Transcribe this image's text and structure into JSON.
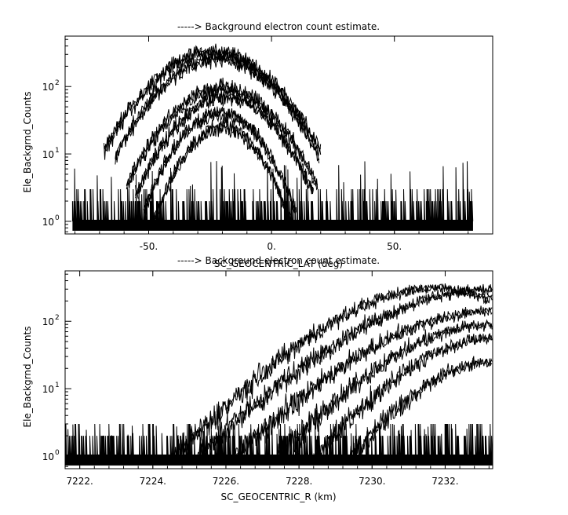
{
  "chart_data": [
    {
      "type": "line",
      "title": "-----> Background electron count estimate.",
      "xlabel": "SC_GEOCENTRIC_LAT (deg)",
      "ylabel": "Ele_Backgrnd_Counts",
      "y_scale": "log",
      "xlim": [
        -84,
        90
      ],
      "ylim": [
        0.65,
        560
      ],
      "x_ticks": [
        -50,
        0,
        50
      ],
      "x_tick_labels": [
        "-50.",
        "0.",
        "50."
      ],
      "y_ticks": [
        1,
        10,
        100
      ],
      "y_tick_labels": [
        {
          "base": "10",
          "exp": "0"
        },
        {
          "base": "10",
          "exp": "1"
        },
        {
          "base": "10",
          "exp": "2"
        }
      ],
      "grid": false,
      "series_envelopes": [
        {
          "center_x": -24,
          "width": 17,
          "peak": 320
        },
        {
          "center_x": -22,
          "width": 16,
          "peak": 260
        },
        {
          "center_x": -20,
          "width": 15,
          "peak": 95
        },
        {
          "center_x": -19,
          "width": 14,
          "peak": 70
        },
        {
          "center_x": -21,
          "width": 12,
          "peak": 40
        },
        {
          "center_x": -20,
          "width": 11,
          "peak": 25
        }
      ],
      "noise_floor": {
        "x_range": [
          -81,
          82
        ],
        "max_count": 8
      }
    },
    {
      "type": "line",
      "title": "-----> Background electron count estimate.",
      "xlabel": "SC_GEOCENTRIC_R (km)",
      "ylabel": "Ele_Backgrnd_Counts",
      "y_scale": "log",
      "xlim": [
        7221.6,
        7233.3
      ],
      "ylim": [
        0.65,
        560
      ],
      "x_ticks": [
        7222,
        7224,
        7226,
        7228,
        7230,
        7232
      ],
      "x_tick_labels": [
        "7222.",
        "7224.",
        "7226.",
        "7228.",
        "7230.",
        "7232."
      ],
      "y_ticks": [
        1,
        10,
        100
      ],
      "y_tick_labels": [
        {
          "base": "10",
          "exp": "0"
        },
        {
          "base": "10",
          "exp": "1"
        },
        {
          "base": "10",
          "exp": "2"
        }
      ],
      "grid": false,
      "series_curves": [
        {
          "start_x": 7224.6,
          "peak_x": 7232.0,
          "peak": 320
        },
        {
          "start_x": 7225.2,
          "peak_x": 7233.3,
          "peak": 300
        },
        {
          "start_x": 7226.2,
          "peak_x": 7233.3,
          "peak": 140
        },
        {
          "start_x": 7227.4,
          "peak_x": 7233.3,
          "peak": 90
        },
        {
          "start_x": 7228.4,
          "peak_x": 7233.3,
          "peak": 55
        },
        {
          "start_x": 7229.4,
          "peak_x": 7233.3,
          "peak": 25
        }
      ],
      "noise_floor": {
        "x_range": [
          7221.6,
          7233.3
        ],
        "max_count": 3
      }
    }
  ]
}
